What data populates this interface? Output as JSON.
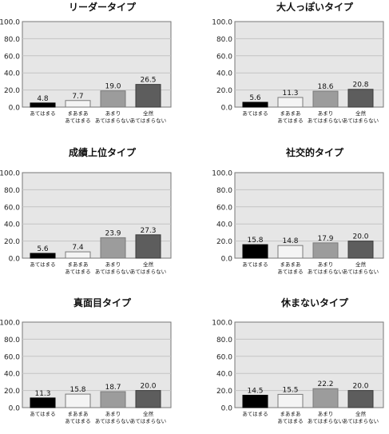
{
  "chart_data": [
    {
      "type": "bar",
      "title": "リーダータイプ",
      "categories": [
        "あてはまる",
        "まあまあ\nあてはまる",
        "あまり\nあてはまらない",
        "全然\nあてはまらない"
      ],
      "values": [
        4.8,
        7.7,
        19.0,
        26.5
      ],
      "ylim": [
        0,
        100
      ],
      "yticks": [
        "100.0",
        "80.0",
        "60.0",
        "40.0",
        "20.0",
        "0.0"
      ],
      "grid": true
    },
    {
      "type": "bar",
      "title": "大人っぽいタイプ",
      "categories": [
        "あてはまる",
        "まあまあ\nあてはまる",
        "あまり\nあてはまらない",
        "全然\nあてはまらない"
      ],
      "values": [
        5.6,
        11.3,
        18.6,
        20.8
      ],
      "ylim": [
        0,
        100
      ],
      "yticks": [
        "100.0",
        "80.0",
        "60.0",
        "40.0",
        "20.0",
        "0.0"
      ],
      "grid": true
    },
    {
      "type": "bar",
      "title": "成績上位タイプ",
      "categories": [
        "あてはまる",
        "まあまあ\nあてはまる",
        "あまり\nあてはまらない",
        "全然\nあてはまらない"
      ],
      "values": [
        5.6,
        7.4,
        23.9,
        27.3
      ],
      "ylim": [
        0,
        100
      ],
      "yticks": [
        "100.0",
        "80.0",
        "60.0",
        "40.0",
        "20.0",
        "0.0"
      ],
      "grid": true
    },
    {
      "type": "bar",
      "title": "社交的タイプ",
      "categories": [
        "あてはまる",
        "まあまあ\nあてはまる",
        "あまり\nあてはまらない",
        "全然\nあてはまらない"
      ],
      "values": [
        15.8,
        14.8,
        17.9,
        20.0
      ],
      "ylim": [
        0,
        100
      ],
      "yticks": [
        "100.0",
        "80.0",
        "60.0",
        "40.0",
        "20.0",
        "0.0"
      ],
      "grid": true
    },
    {
      "type": "bar",
      "title": "真面目タイプ",
      "categories": [
        "あてはまる",
        "まあまあ\nあてはまる",
        "あまり\nあてはまらない",
        "全然\nあてはまらない"
      ],
      "values": [
        11.3,
        15.8,
        18.7,
        20.0
      ],
      "ylim": [
        0,
        100
      ],
      "yticks": [
        "100.0",
        "80.0",
        "60.0",
        "40.0",
        "20.0",
        "0.0"
      ],
      "grid": true
    },
    {
      "type": "bar",
      "title": "休まないタイプ",
      "categories": [
        "あてはまる",
        "まあまあ\nあてはまる",
        "あまり\nあてはまらない",
        "全然\nあてはまらない"
      ],
      "values": [
        14.5,
        15.5,
        22.2,
        20.0
      ],
      "ylim": [
        0,
        100
      ],
      "yticks": [
        "100.0",
        "80.0",
        "60.0",
        "40.0",
        "20.0",
        "0.0"
      ],
      "grid": true
    }
  ],
  "colors": {
    "plot_background": "#e6e6e6",
    "gridline": "#c4c4c4",
    "axis": "#777777",
    "bar_fills": [
      "#000000",
      "#f4f4f4",
      "#9c9c9c",
      "#5d5d5d"
    ],
    "bar_strokes": [
      "#000000",
      "#7a7a7a",
      "#7a7a7a",
      "#3a3a3a"
    ]
  }
}
